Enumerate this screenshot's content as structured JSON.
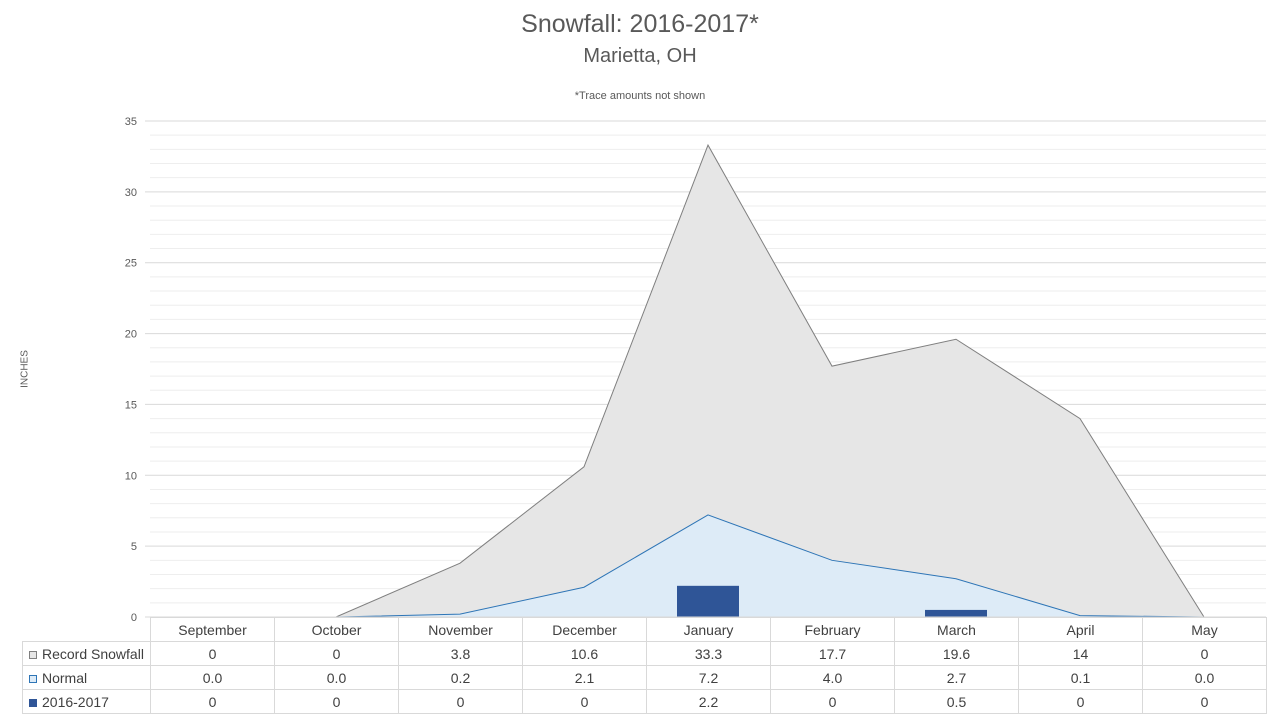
{
  "chart_data": {
    "type": "area",
    "title": "Snowfall: 2016-2017*",
    "subtitle": "Marietta, OH",
    "note": "*Trace amounts not shown",
    "ylabel": "INCHES",
    "ylim": [
      0,
      35
    ],
    "yticks": [
      "0",
      "5",
      "10",
      "15",
      "20",
      "25",
      "30",
      "35"
    ],
    "grid": true,
    "legend": "data-table",
    "categories": [
      "September",
      "October",
      "November",
      "December",
      "January",
      "February",
      "March",
      "April",
      "May"
    ],
    "series": [
      {
        "name": "Record Snowfall",
        "kind": "area",
        "values": [
          0,
          0,
          3.8,
          10.6,
          33.3,
          17.7,
          19.6,
          14,
          0
        ],
        "labels": [
          "0",
          "0",
          "3.8",
          "10.6",
          "33.3",
          "17.7",
          "19.6",
          "14",
          "0"
        ],
        "fill": "#e6e6e6",
        "stroke": "#7f7f7f"
      },
      {
        "name": "Normal",
        "kind": "area",
        "values": [
          0.0,
          0.0,
          0.2,
          2.1,
          7.2,
          4.0,
          2.7,
          0.1,
          0.0
        ],
        "labels": [
          "0.0",
          "0.0",
          "0.2",
          "2.1",
          "7.2",
          "4.0",
          "2.7",
          "0.1",
          "0.0"
        ],
        "fill": "#ddebf7",
        "stroke": "#2e75b6"
      },
      {
        "name": "2016-2017",
        "kind": "bar",
        "values": [
          0,
          0,
          0,
          0,
          2.2,
          0,
          0.5,
          0,
          0
        ],
        "labels": [
          "0",
          "0",
          "0",
          "0",
          "2.2",
          "0",
          "0.5",
          "0",
          "0"
        ],
        "fill": "#2f5597",
        "stroke": "#2f5597"
      }
    ]
  }
}
